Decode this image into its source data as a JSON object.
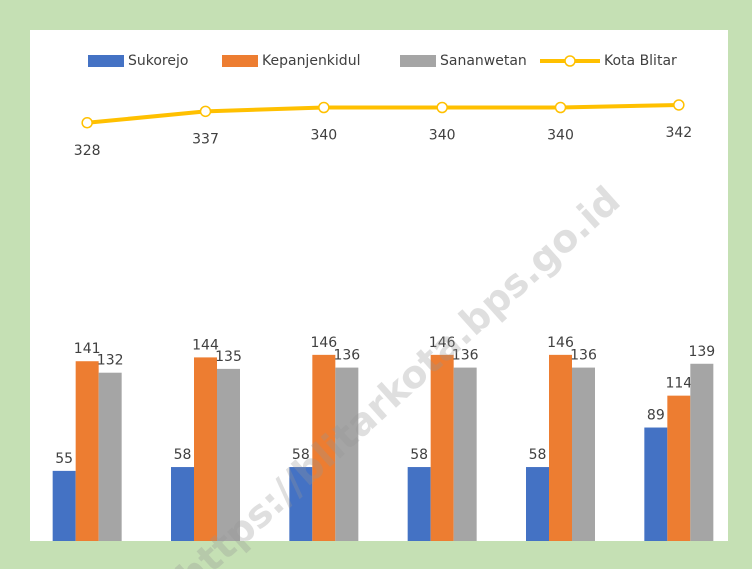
{
  "chart_data": {
    "type": "bar_line",
    "categories": [
      null,
      null,
      null,
      null,
      null,
      null
    ],
    "series": [
      {
        "name": "Sukorejo",
        "type": "bar",
        "color": "#4472c4",
        "values": [
          55,
          58,
          58,
          58,
          58,
          89
        ]
      },
      {
        "name": "Kepanjenkidul",
        "type": "bar",
        "color": "#ed7d31",
        "values": [
          141,
          144,
          146,
          146,
          146,
          114
        ]
      },
      {
        "name": "Sananwetan",
        "type": "bar",
        "color": "#a5a5a5",
        "values": [
          132,
          135,
          136,
          136,
          136,
          139
        ]
      },
      {
        "name": "Kota Blitar",
        "type": "line",
        "color": "#ffc000",
        "values": [
          328,
          337,
          340,
          340,
          340,
          342
        ]
      }
    ],
    "ylim": [
      0,
      400
    ],
    "legend": "top",
    "watermark": "https://blitarkota.bps.go.id"
  }
}
